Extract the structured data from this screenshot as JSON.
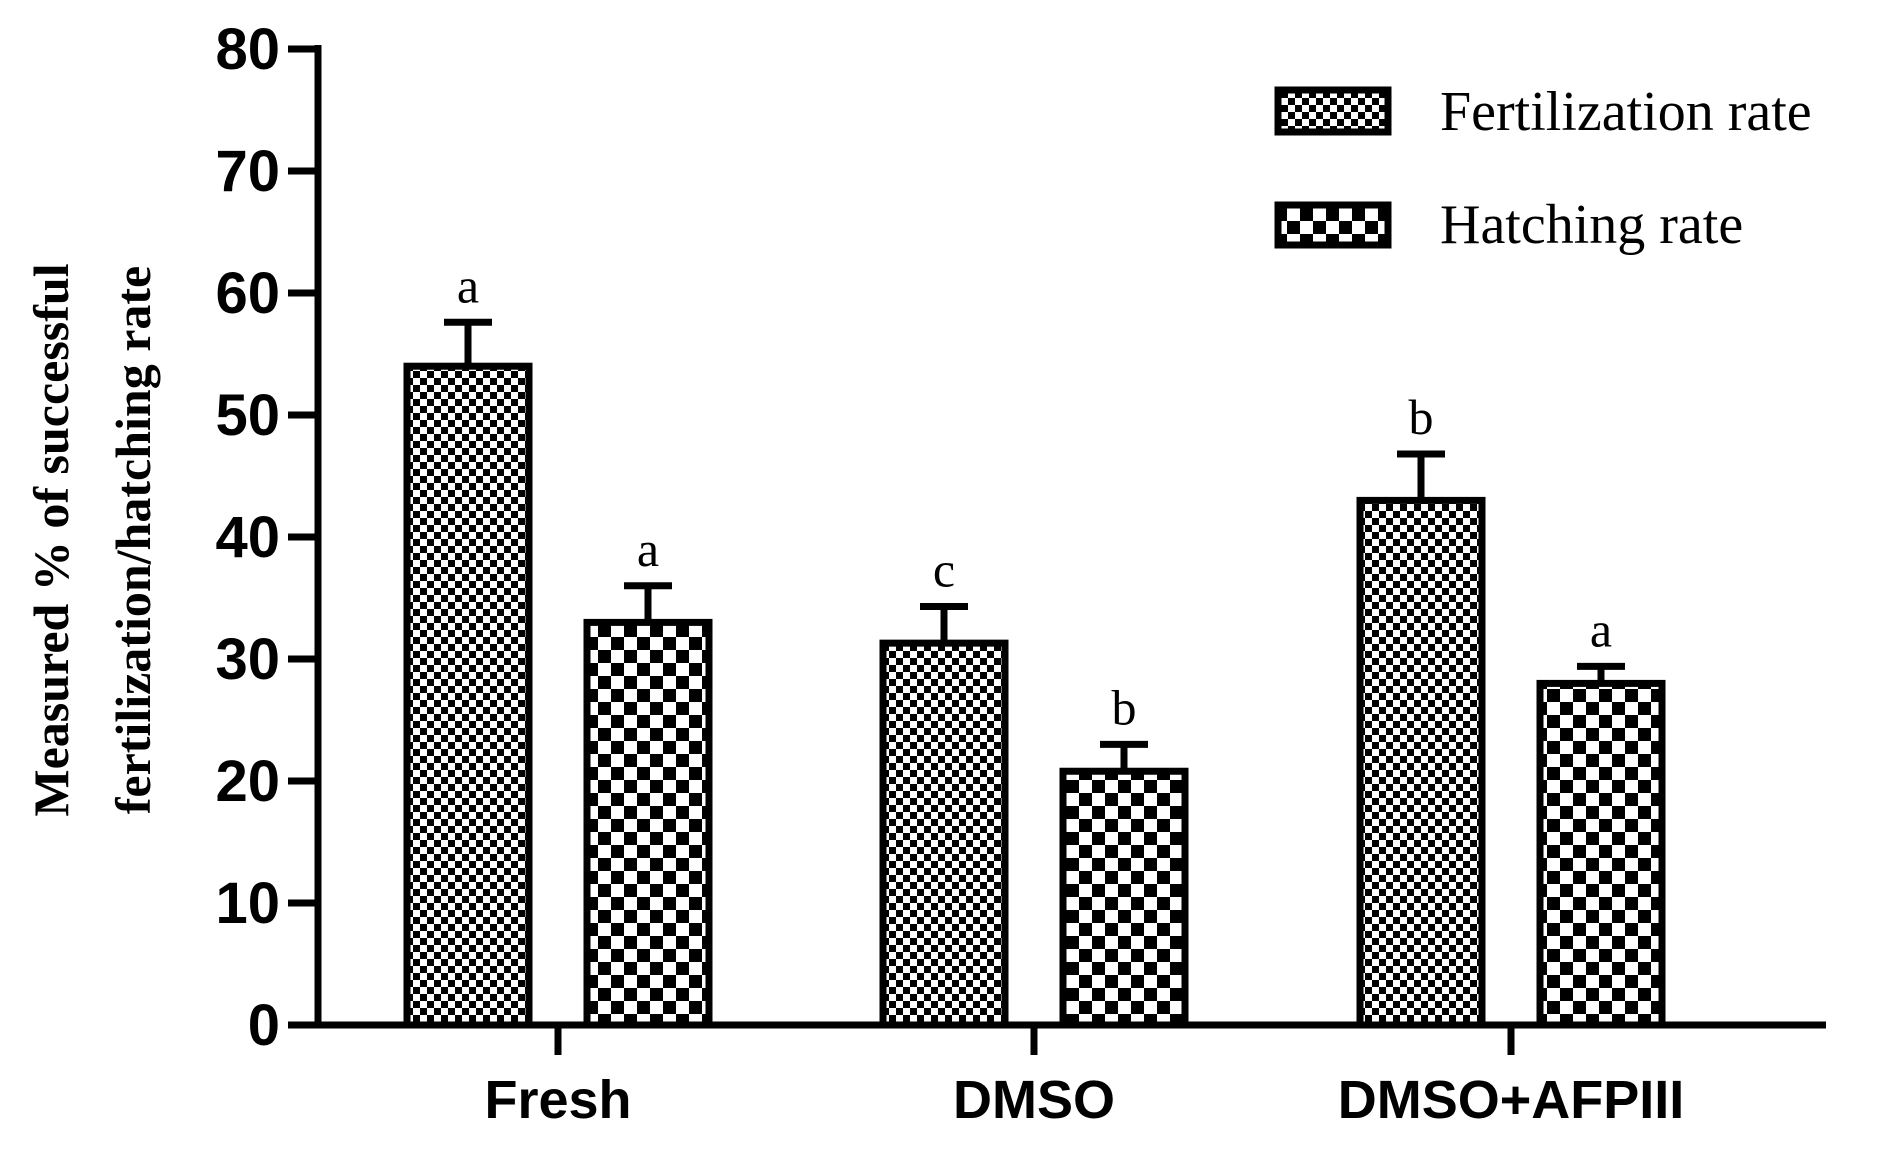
{
  "chart_data": {
    "type": "bar",
    "ylabel_line1": "Measured % of successful",
    "ylabel_line2": "fertilization/hatching rate",
    "xlabel": "",
    "categories": [
      "Fresh",
      "DMSO",
      "DMSO+AFPIII"
    ],
    "ylim": [
      0,
      80
    ],
    "yticks": [
      0,
      10,
      20,
      30,
      40,
      50,
      60,
      70,
      80
    ],
    "legend_position": "top-right",
    "grid": false,
    "series": [
      {
        "name": "Fertilization rate",
        "pattern": "fine-checker",
        "values": [
          54,
          31.3,
          43
        ],
        "errors": [
          3.6,
          3.0,
          3.8
        ],
        "labels": [
          "a",
          "c",
          "b"
        ]
      },
      {
        "name": "Hatching rate",
        "pattern": "coarse-checker",
        "values": [
          33,
          20.8,
          28
        ],
        "errors": [
          3.0,
          2.2,
          1.4
        ],
        "labels": [
          "a",
          "b",
          "a"
        ]
      }
    ]
  },
  "colors": {
    "ink": "#000000",
    "background": "#ffffff"
  }
}
